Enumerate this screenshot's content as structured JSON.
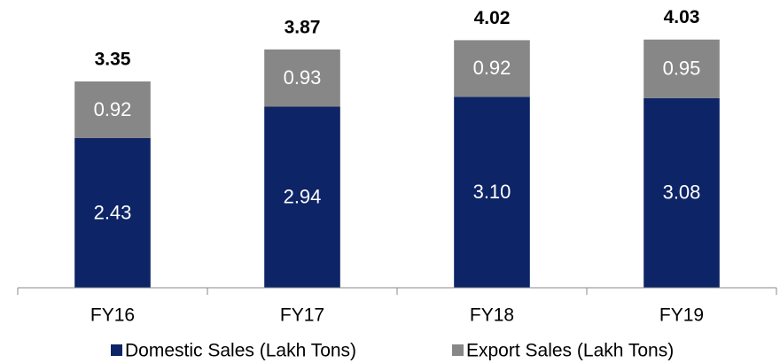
{
  "chart_data": {
    "type": "stacked_bar",
    "categories": [
      "FY16",
      "FY17",
      "FY18",
      "FY19"
    ],
    "series": [
      {
        "name": "Domestic Sales (Lakh Tons)",
        "color": "#0d2466",
        "values": [
          2.43,
          2.94,
          3.1,
          3.08
        ],
        "value_labels": [
          "2.43",
          "2.94",
          "3.10",
          "3.08"
        ]
      },
      {
        "name": "Export Sales (Lakh Tons)",
        "color": "#878787",
        "values": [
          0.92,
          0.93,
          0.92,
          0.95
        ]
      }
    ],
    "totals": [
      3.35,
      3.87,
      4.02,
      4.03
    ],
    "ylim": [
      0,
      4.5
    ],
    "legend": "bottom"
  }
}
